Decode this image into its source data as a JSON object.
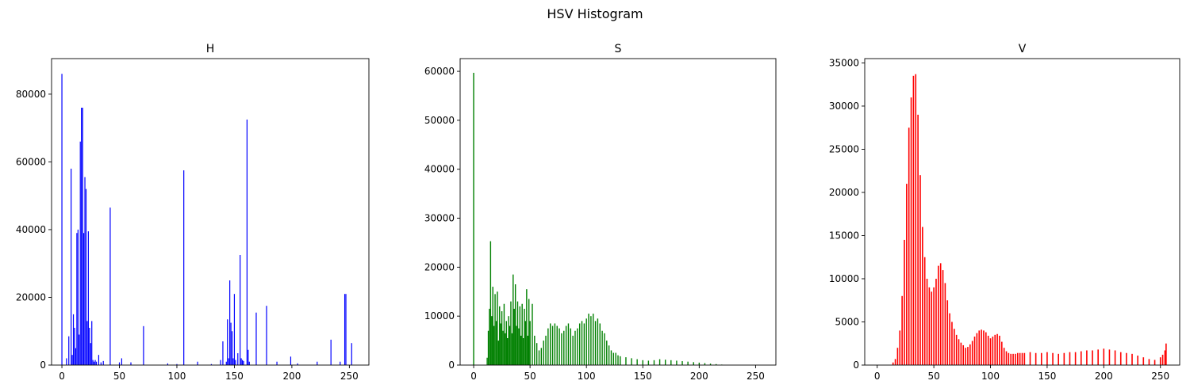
{
  "figure": {
    "title": "HSV Histogram"
  },
  "chart_data": [
    {
      "type": "bar",
      "title": "H",
      "color": "#0000ff",
      "xlim": [
        -9,
        267
      ],
      "ylim": [
        0,
        90500
      ],
      "xticks": [
        0,
        50,
        100,
        150,
        200,
        250
      ],
      "yticks": [
        0,
        20000,
        40000,
        60000,
        80000
      ],
      "x": [
        0,
        4,
        6,
        8,
        9,
        10,
        11,
        12,
        13,
        14,
        15,
        16,
        17,
        18,
        19,
        20,
        21,
        22,
        23,
        24,
        25,
        26,
        27,
        28,
        29,
        30,
        32,
        34,
        36,
        42,
        50,
        52,
        60,
        71,
        92,
        100,
        106,
        118,
        130,
        138,
        140,
        143,
        144,
        145,
        146,
        147,
        148,
        149,
        150,
        151,
        153,
        155,
        156,
        157,
        158,
        161,
        162,
        163,
        169,
        178,
        187,
        199,
        205,
        222,
        234,
        242,
        246,
        247,
        252
      ],
      "values": [
        86000,
        2000,
        8500,
        58000,
        3000,
        15000,
        11000,
        5000,
        39000,
        40000,
        9000,
        66000,
        76000,
        76000,
        39000,
        55500,
        52000,
        13000,
        39500,
        11000,
        6500,
        13000,
        1500,
        1000,
        1500,
        1000,
        3000,
        800,
        1200,
        46500,
        800,
        2000,
        800,
        11500,
        500,
        300,
        57500,
        1000,
        300,
        1500,
        7000,
        1000,
        13500,
        2000,
        25000,
        12500,
        10000,
        2000,
        21000,
        1500,
        3500,
        32500,
        2000,
        1500,
        1200,
        72500,
        4500,
        1000,
        15500,
        17500,
        1000,
        2500,
        500,
        1000,
        7500,
        1000,
        21000,
        21000,
        6500
      ]
    },
    {
      "type": "bar",
      "title": "S",
      "color": "#008000",
      "xlim": [
        -12,
        268
      ],
      "ylim": [
        0,
        62600
      ],
      "xticks": [
        0,
        50,
        100,
        150,
        200,
        250
      ],
      "yticks": [
        0,
        10000,
        20000,
        30000,
        40000,
        50000,
        60000
      ],
      "x": [
        0,
        12,
        13,
        14,
        15,
        16,
        17,
        18,
        19,
        20,
        21,
        22,
        23,
        24,
        25,
        26,
        27,
        28,
        29,
        30,
        31,
        32,
        33,
        34,
        35,
        36,
        37,
        38,
        39,
        40,
        41,
        42,
        43,
        44,
        45,
        46,
        47,
        48,
        49,
        50,
        52,
        54,
        56,
        58,
        60,
        62,
        64,
        66,
        68,
        70,
        72,
        74,
        76,
        78,
        80,
        82,
        84,
        86,
        88,
        90,
        92,
        94,
        96,
        98,
        100,
        102,
        104,
        106,
        108,
        110,
        112,
        114,
        116,
        118,
        120,
        122,
        124,
        126,
        128,
        130,
        135,
        140,
        145,
        150,
        155,
        160,
        165,
        170,
        175,
        180,
        185,
        190,
        195,
        200,
        205,
        210,
        215,
        220,
        225
      ],
      "values": [
        59700,
        1500,
        7000,
        11500,
        25300,
        10000,
        16000,
        8000,
        14500,
        9000,
        15000,
        5000,
        12000,
        8500,
        11000,
        7000,
        12500,
        6500,
        9000,
        5500,
        10000,
        8000,
        13000,
        6500,
        18500,
        11500,
        16500,
        8000,
        13000,
        7500,
        12000,
        6000,
        12500,
        5500,
        11500,
        9000,
        15500,
        6000,
        13500,
        9000,
        12500,
        6000,
        4500,
        3000,
        3500,
        5000,
        6000,
        7500,
        8500,
        8000,
        8500,
        8000,
        7500,
        6500,
        7000,
        8000,
        8500,
        7500,
        6000,
        7000,
        7500,
        8500,
        9000,
        8500,
        9500,
        10500,
        10000,
        10500,
        9000,
        9500,
        8500,
        7000,
        6500,
        5000,
        4000,
        3000,
        2500,
        2500,
        2000,
        1800,
        1600,
        1400,
        1200,
        1000,
        900,
        1000,
        1200,
        1100,
        1000,
        900,
        800,
        700,
        600,
        500,
        400,
        300,
        200,
        100,
        0
      ]
    },
    {
      "type": "bar",
      "title": "V",
      "color": "#ff0000",
      "xlim": [
        -11,
        267
      ],
      "ylim": [
        0,
        35500
      ],
      "xticks": [
        0,
        50,
        100,
        150,
        200,
        250
      ],
      "yticks": [
        0,
        5000,
        10000,
        15000,
        20000,
        25000,
        30000,
        35000
      ],
      "x": [
        14,
        16,
        18,
        20,
        22,
        24,
        26,
        28,
        30,
        32,
        34,
        36,
        38,
        40,
        42,
        44,
        46,
        48,
        50,
        52,
        54,
        56,
        58,
        60,
        62,
        64,
        66,
        68,
        70,
        72,
        74,
        76,
        78,
        80,
        82,
        84,
        86,
        88,
        90,
        92,
        94,
        96,
        98,
        100,
        102,
        104,
        106,
        108,
        110,
        112,
        114,
        116,
        118,
        120,
        122,
        124,
        126,
        128,
        130,
        135,
        140,
        145,
        150,
        155,
        160,
        165,
        170,
        175,
        180,
        185,
        190,
        195,
        200,
        205,
        210,
        215,
        220,
        225,
        230,
        235,
        240,
        245,
        250,
        252,
        254,
        255
      ],
      "values": [
        300,
        700,
        2000,
        4000,
        8000,
        14500,
        21000,
        27500,
        31000,
        33500,
        33700,
        29000,
        22000,
        16000,
        12500,
        10000,
        9000,
        8500,
        9000,
        10000,
        11500,
        11800,
        11000,
        9500,
        7500,
        6000,
        5000,
        4200,
        3500,
        3000,
        2600,
        2300,
        2000,
        2100,
        2400,
        2800,
        3300,
        3700,
        4000,
        4100,
        4000,
        3800,
        3400,
        3100,
        3300,
        3500,
        3600,
        3400,
        2700,
        2000,
        1600,
        1400,
        1300,
        1300,
        1300,
        1400,
        1400,
        1400,
        1400,
        1500,
        1400,
        1400,
        1500,
        1400,
        1300,
        1400,
        1500,
        1500,
        1600,
        1700,
        1700,
        1800,
        1900,
        1800,
        1700,
        1500,
        1400,
        1300,
        1100,
        900,
        700,
        600,
        900,
        1200,
        1700,
        2500
      ]
    }
  ]
}
